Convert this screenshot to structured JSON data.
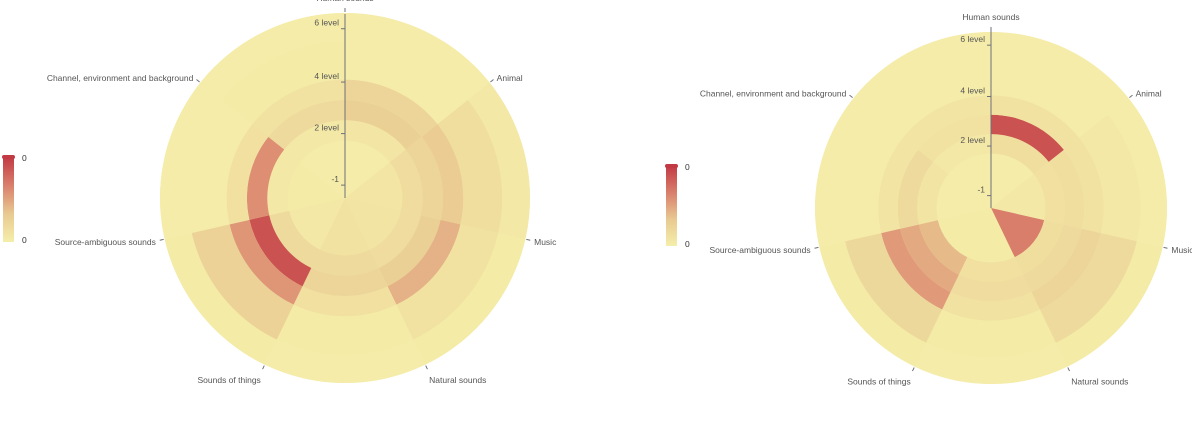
{
  "chart_data": [
    {
      "type": "heatmap",
      "subtype": "polar",
      "title": "",
      "angle_categories": [
        "Human sounds",
        "Animal",
        "Music",
        "Natural sounds",
        "Sounds of things",
        "Source-ambiguous sounds",
        "Channel, environment and background"
      ],
      "radius_ticks": [
        "-1",
        "2 level",
        "4 level",
        "6 level"
      ],
      "radius_range": [
        -1,
        7
      ],
      "visual_map": {
        "min_label": "0",
        "max_label": "0",
        "colors": [
          "#f5eeaa",
          "#e8c991",
          "#d97f6c",
          "#c23a44"
        ],
        "orientation": "vertical"
      },
      "bar_sectors": [
        {
          "category": "Animal",
          "r0": -1,
          "r1": 6.5,
          "value": 0.04
        },
        {
          "category": "Music",
          "r0": -1,
          "r1": 6.5,
          "value": 0.1
        },
        {
          "category": "Sounds of things",
          "r0": -1,
          "r1": 6.5,
          "value": 0.2
        }
      ],
      "cells": [
        {
          "category": "Human sounds",
          "ring": 0,
          "value": 0.02
        },
        {
          "category": "Human sounds",
          "ring": 1,
          "value": 0.08
        },
        {
          "category": "Human sounds",
          "ring": 2,
          "value": 0.3
        },
        {
          "category": "Human sounds",
          "ring": 3,
          "value": 0.24
        },
        {
          "category": "Human sounds",
          "ring": 4,
          "value": 0.02
        },
        {
          "category": "Human sounds",
          "ring": 5,
          "value": 0.02
        },
        {
          "category": "Animal",
          "ring": 0,
          "value": 0.08
        },
        {
          "category": "Animal",
          "ring": 1,
          "value": 0.18
        },
        {
          "category": "Animal",
          "ring": 2,
          "value": 0.26
        },
        {
          "category": "Animal",
          "ring": 3,
          "value": 0.32
        },
        {
          "category": "Animal",
          "ring": 4,
          "value": 0.16
        },
        {
          "category": "Animal",
          "ring": 5,
          "value": 0.06
        },
        {
          "category": "Music",
          "ring": 0,
          "value": 0.1
        },
        {
          "category": "Music",
          "ring": 1,
          "value": 0.18
        },
        {
          "category": "Music",
          "ring": 2,
          "value": 0.3
        },
        {
          "category": "Music",
          "ring": 3,
          "value": 0.46
        },
        {
          "category": "Music",
          "ring": 4,
          "value": 0.12
        },
        {
          "category": "Music",
          "ring": 5,
          "value": 0.04
        },
        {
          "category": "Natural sounds",
          "ring": 0,
          "value": 0.12
        },
        {
          "category": "Natural sounds",
          "ring": 1,
          "value": 0.2
        },
        {
          "category": "Natural sounds",
          "ring": 2,
          "value": 0.24
        },
        {
          "category": "Natural sounds",
          "ring": 3,
          "value": 0.14
        },
        {
          "category": "Natural sounds",
          "ring": 4,
          "value": 0.04
        },
        {
          "category": "Natural sounds",
          "ring": 5,
          "value": 0.02
        },
        {
          "category": "Sounds of things",
          "ring": 0,
          "value": 0.06
        },
        {
          "category": "Sounds of things",
          "ring": 1,
          "value": 0.2
        },
        {
          "category": "Sounds of things",
          "ring": 2,
          "value": 0.95
        },
        {
          "category": "Sounds of things",
          "ring": 3,
          "value": 0.6
        },
        {
          "category": "Sounds of things",
          "ring": 4,
          "value": 0.28
        },
        {
          "category": "Sounds of things",
          "ring": 5,
          "value": 0.04
        },
        {
          "category": "Source-ambiguous sounds",
          "ring": 0,
          "value": 0.04
        },
        {
          "category": "Source-ambiguous sounds",
          "ring": 1,
          "value": 0.06
        },
        {
          "category": "Source-ambiguous sounds",
          "ring": 2,
          "value": 0.64
        },
        {
          "category": "Source-ambiguous sounds",
          "ring": 3,
          "value": 0.14
        },
        {
          "category": "Source-ambiguous sounds",
          "ring": 4,
          "value": 0.02
        },
        {
          "category": "Source-ambiguous sounds",
          "ring": 5,
          "value": 0.02
        },
        {
          "category": "Channel, environment and background",
          "ring": 0,
          "value": 0.02
        },
        {
          "category": "Channel, environment and background",
          "ring": 1,
          "value": 0.06
        },
        {
          "category": "Channel, environment and background",
          "ring": 2,
          "value": 0.2
        },
        {
          "category": "Channel, environment and background",
          "ring": 3,
          "value": 0.12
        },
        {
          "category": "Channel, environment and background",
          "ring": 4,
          "value": 0.04
        },
        {
          "category": "Channel, environment and background",
          "ring": 5,
          "value": 0.02
        }
      ]
    },
    {
      "type": "heatmap",
      "subtype": "polar",
      "title": "",
      "angle_categories": [
        "Human sounds",
        "Animal",
        "Music",
        "Natural sounds",
        "Sounds of things",
        "Source-ambiguous sounds",
        "Channel, environment and background"
      ],
      "radius_ticks": [
        "-1",
        "2 level",
        "4 level",
        "6 level"
      ],
      "radius_range": [
        -1,
        7
      ],
      "visual_map": {
        "min_label": "0",
        "max_label": "0",
        "colors": [
          "#f5eeaa",
          "#e8c991",
          "#d97f6c",
          "#c23a44"
        ],
        "orientation": "vertical"
      },
      "bar_sectors": [
        {
          "category": "Animal",
          "r0": -1,
          "r1": 6.5,
          "value": 0.04
        },
        {
          "category": "Music",
          "r0": -1,
          "r1": 6.5,
          "value": 0.06
        },
        {
          "category": "Sounds of things",
          "r0": -1,
          "r1": 6.5,
          "value": 0.1
        }
      ],
      "cells": [
        {
          "category": "Human sounds",
          "ring": 0,
          "value": 0.02
        },
        {
          "category": "Human sounds",
          "ring": 1,
          "value": 0.16
        },
        {
          "category": "Human sounds",
          "ring": 2,
          "value": 0.95
        },
        {
          "category": "Human sounds",
          "ring": 3,
          "value": 0.12
        },
        {
          "category": "Human sounds",
          "ring": 4,
          "value": 0.02
        },
        {
          "category": "Human sounds",
          "ring": 5,
          "value": 0.02
        },
        {
          "category": "Animal",
          "ring": 0,
          "value": 0.06
        },
        {
          "category": "Animal",
          "ring": 1,
          "value": 0.14
        },
        {
          "category": "Animal",
          "ring": 2,
          "value": 0.16
        },
        {
          "category": "Animal",
          "ring": 3,
          "value": 0.12
        },
        {
          "category": "Animal",
          "ring": 4,
          "value": 0.06
        },
        {
          "category": "Animal",
          "ring": 5,
          "value": 0.02
        },
        {
          "category": "Music",
          "ring": 0,
          "value": 0.72
        },
        {
          "category": "Music",
          "ring": 1,
          "value": 0.16
        },
        {
          "category": "Music",
          "ring": 2,
          "value": 0.2
        },
        {
          "category": "Music",
          "ring": 3,
          "value": 0.24
        },
        {
          "category": "Music",
          "ring": 4,
          "value": 0.2
        },
        {
          "category": "Music",
          "ring": 5,
          "value": 0.04
        },
        {
          "category": "Natural sounds",
          "ring": 0,
          "value": 0.04
        },
        {
          "category": "Natural sounds",
          "ring": 1,
          "value": 0.14
        },
        {
          "category": "Natural sounds",
          "ring": 2,
          "value": 0.18
        },
        {
          "category": "Natural sounds",
          "ring": 3,
          "value": 0.12
        },
        {
          "category": "Natural sounds",
          "ring": 4,
          "value": 0.04
        },
        {
          "category": "Natural sounds",
          "ring": 5,
          "value": 0.02
        },
        {
          "category": "Sounds of things",
          "ring": 0,
          "value": 0.04
        },
        {
          "category": "Sounds of things",
          "ring": 1,
          "value": 0.42
        },
        {
          "category": "Sounds of things",
          "ring": 2,
          "value": 0.5
        },
        {
          "category": "Sounds of things",
          "ring": 3,
          "value": 0.58
        },
        {
          "category": "Sounds of things",
          "ring": 4,
          "value": 0.22
        },
        {
          "category": "Sounds of things",
          "ring": 5,
          "value": 0.04
        },
        {
          "category": "Source-ambiguous sounds",
          "ring": 0,
          "value": 0.02
        },
        {
          "category": "Source-ambiguous sounds",
          "ring": 1,
          "value": 0.1
        },
        {
          "category": "Source-ambiguous sounds",
          "ring": 2,
          "value": 0.2
        },
        {
          "category": "Source-ambiguous sounds",
          "ring": 3,
          "value": 0.1
        },
        {
          "category": "Source-ambiguous sounds",
          "ring": 4,
          "value": 0.02
        },
        {
          "category": "Source-ambiguous sounds",
          "ring": 5,
          "value": 0.02
        },
        {
          "category": "Channel, environment and background",
          "ring": 0,
          "value": 0.02
        },
        {
          "category": "Channel, environment and background",
          "ring": 1,
          "value": 0.06
        },
        {
          "category": "Channel, environment and background",
          "ring": 2,
          "value": 0.12
        },
        {
          "category": "Channel, environment and background",
          "ring": 3,
          "value": 0.1
        },
        {
          "category": "Channel, environment and background",
          "ring": 4,
          "value": 0.02
        },
        {
          "category": "Channel, environment and background",
          "ring": 5,
          "value": 0.02
        }
      ]
    }
  ]
}
